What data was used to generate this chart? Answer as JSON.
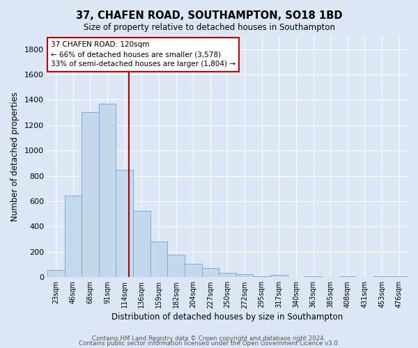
{
  "title": "37, CHAFEN ROAD, SOUTHAMPTON, SO18 1BD",
  "subtitle": "Size of property relative to detached houses in Southampton",
  "xlabel": "Distribution of detached houses by size in Southampton",
  "ylabel": "Number of detached properties",
  "bar_labels": [
    "23sqm",
    "46sqm",
    "68sqm",
    "91sqm",
    "114sqm",
    "136sqm",
    "159sqm",
    "182sqm",
    "204sqm",
    "227sqm",
    "250sqm",
    "272sqm",
    "295sqm",
    "317sqm",
    "340sqm",
    "363sqm",
    "385sqm",
    "408sqm",
    "431sqm",
    "453sqm",
    "476sqm"
  ],
  "bar_values": [
    55,
    645,
    1305,
    1370,
    850,
    525,
    280,
    175,
    105,
    70,
    35,
    25,
    5,
    15,
    0,
    5,
    0,
    5,
    0,
    5,
    5
  ],
  "bar_color": "#c5d8ee",
  "bar_edge_color": "#7aaed4",
  "ylim": [
    0,
    1900
  ],
  "yticks": [
    0,
    200,
    400,
    600,
    800,
    1000,
    1200,
    1400,
    1600,
    1800
  ],
  "vline_color": "#aa0000",
  "annotation_title": "37 CHAFEN ROAD: 120sqm",
  "annotation_line1": "← 66% of detached houses are smaller (3,578)",
  "annotation_line2": "33% of semi-detached houses are larger (1,804) →",
  "annotation_box_color": "#ffffff",
  "annotation_box_edge": "#cc0000",
  "footer1": "Contains HM Land Registry data © Crown copyright and database right 2024.",
  "footer2": "Contains public sector information licensed under the Open Government Licence v3.0.",
  "background_color": "#dce6f5",
  "plot_background": "#dce6f5"
}
